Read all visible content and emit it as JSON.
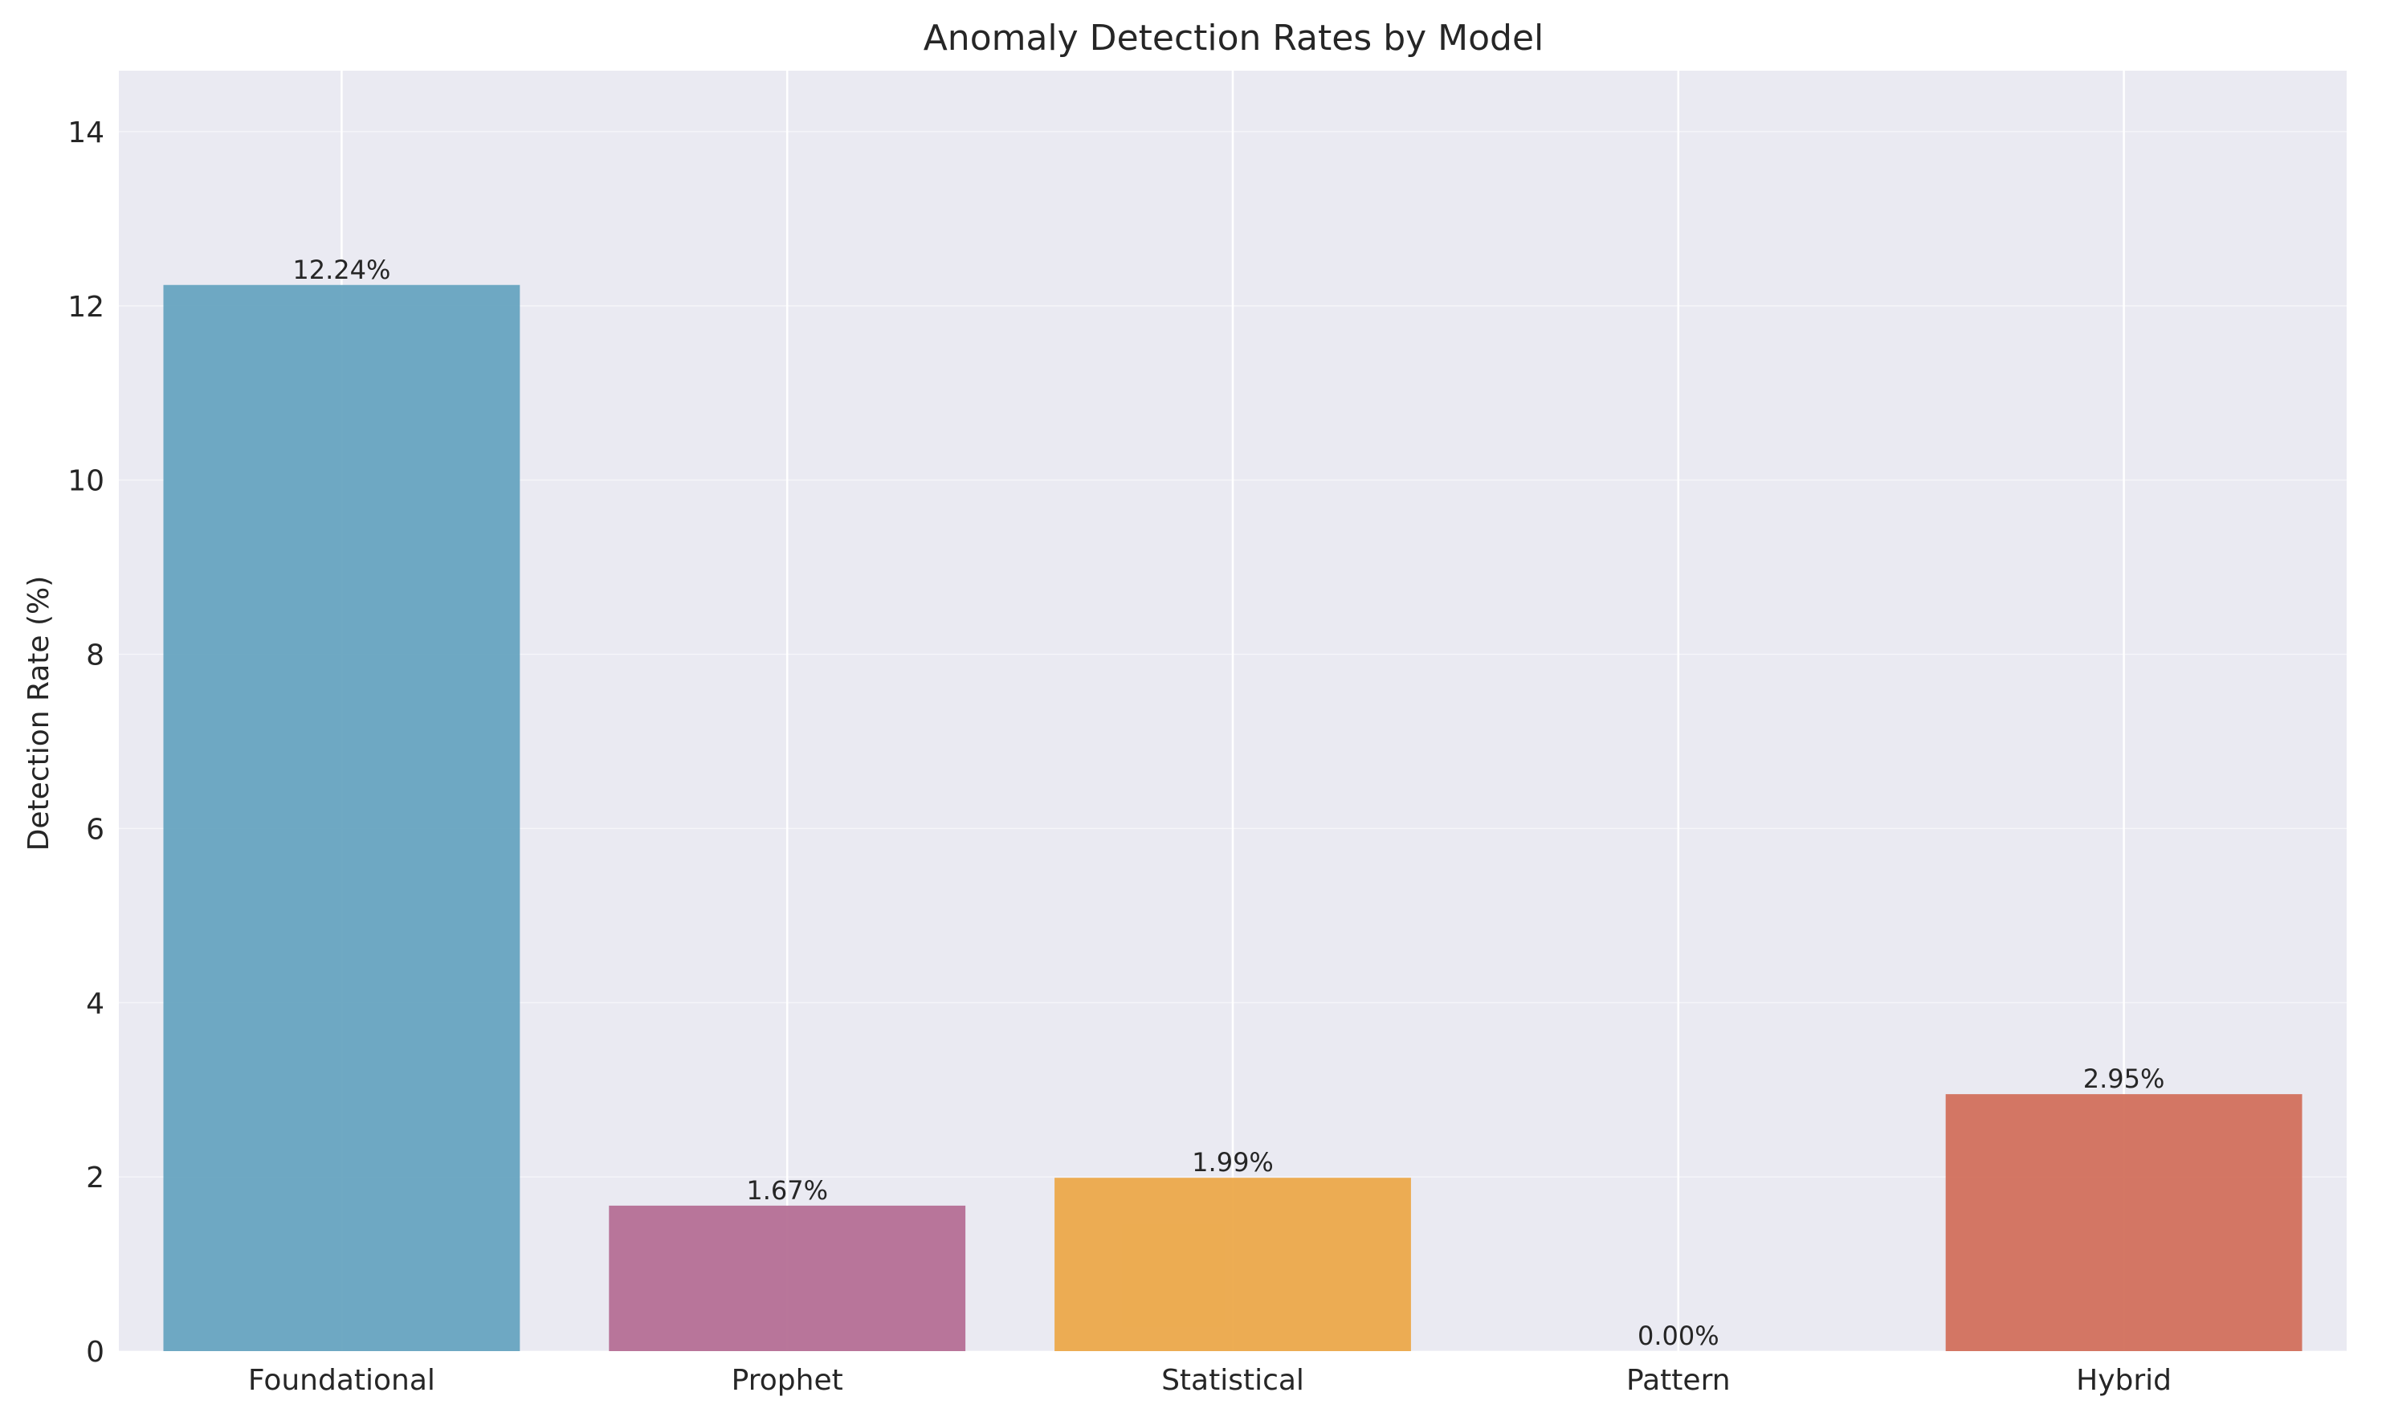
{
  "chart_data": {
    "type": "bar",
    "title": "Anomaly Detection Rates by Model",
    "xlabel": "",
    "ylabel": "Detection Rate (%)",
    "categories": [
      "Foundational",
      "Prophet",
      "Statistical",
      "Pattern",
      "Hybrid"
    ],
    "values": [
      12.24,
      1.67,
      1.99,
      0.0,
      2.95
    ],
    "value_labels": [
      "12.24%",
      "1.67%",
      "1.99%",
      "0.00%",
      "2.95%"
    ],
    "colors": [
      "#67a4c0",
      "#b56f95",
      "#eca94a",
      "#9aa4b4",
      "#d2705c"
    ],
    "ylim": [
      0,
      14.7
    ],
    "yticks": [
      0,
      2,
      4,
      6,
      8,
      10,
      12,
      14
    ],
    "ytick_labels": [
      "0",
      "2",
      "4",
      "6",
      "8",
      "10",
      "12",
      "14"
    ],
    "grid": true,
    "legend": "none",
    "background_color": "#eaeaf2",
    "grid_color": "#ffffff"
  }
}
